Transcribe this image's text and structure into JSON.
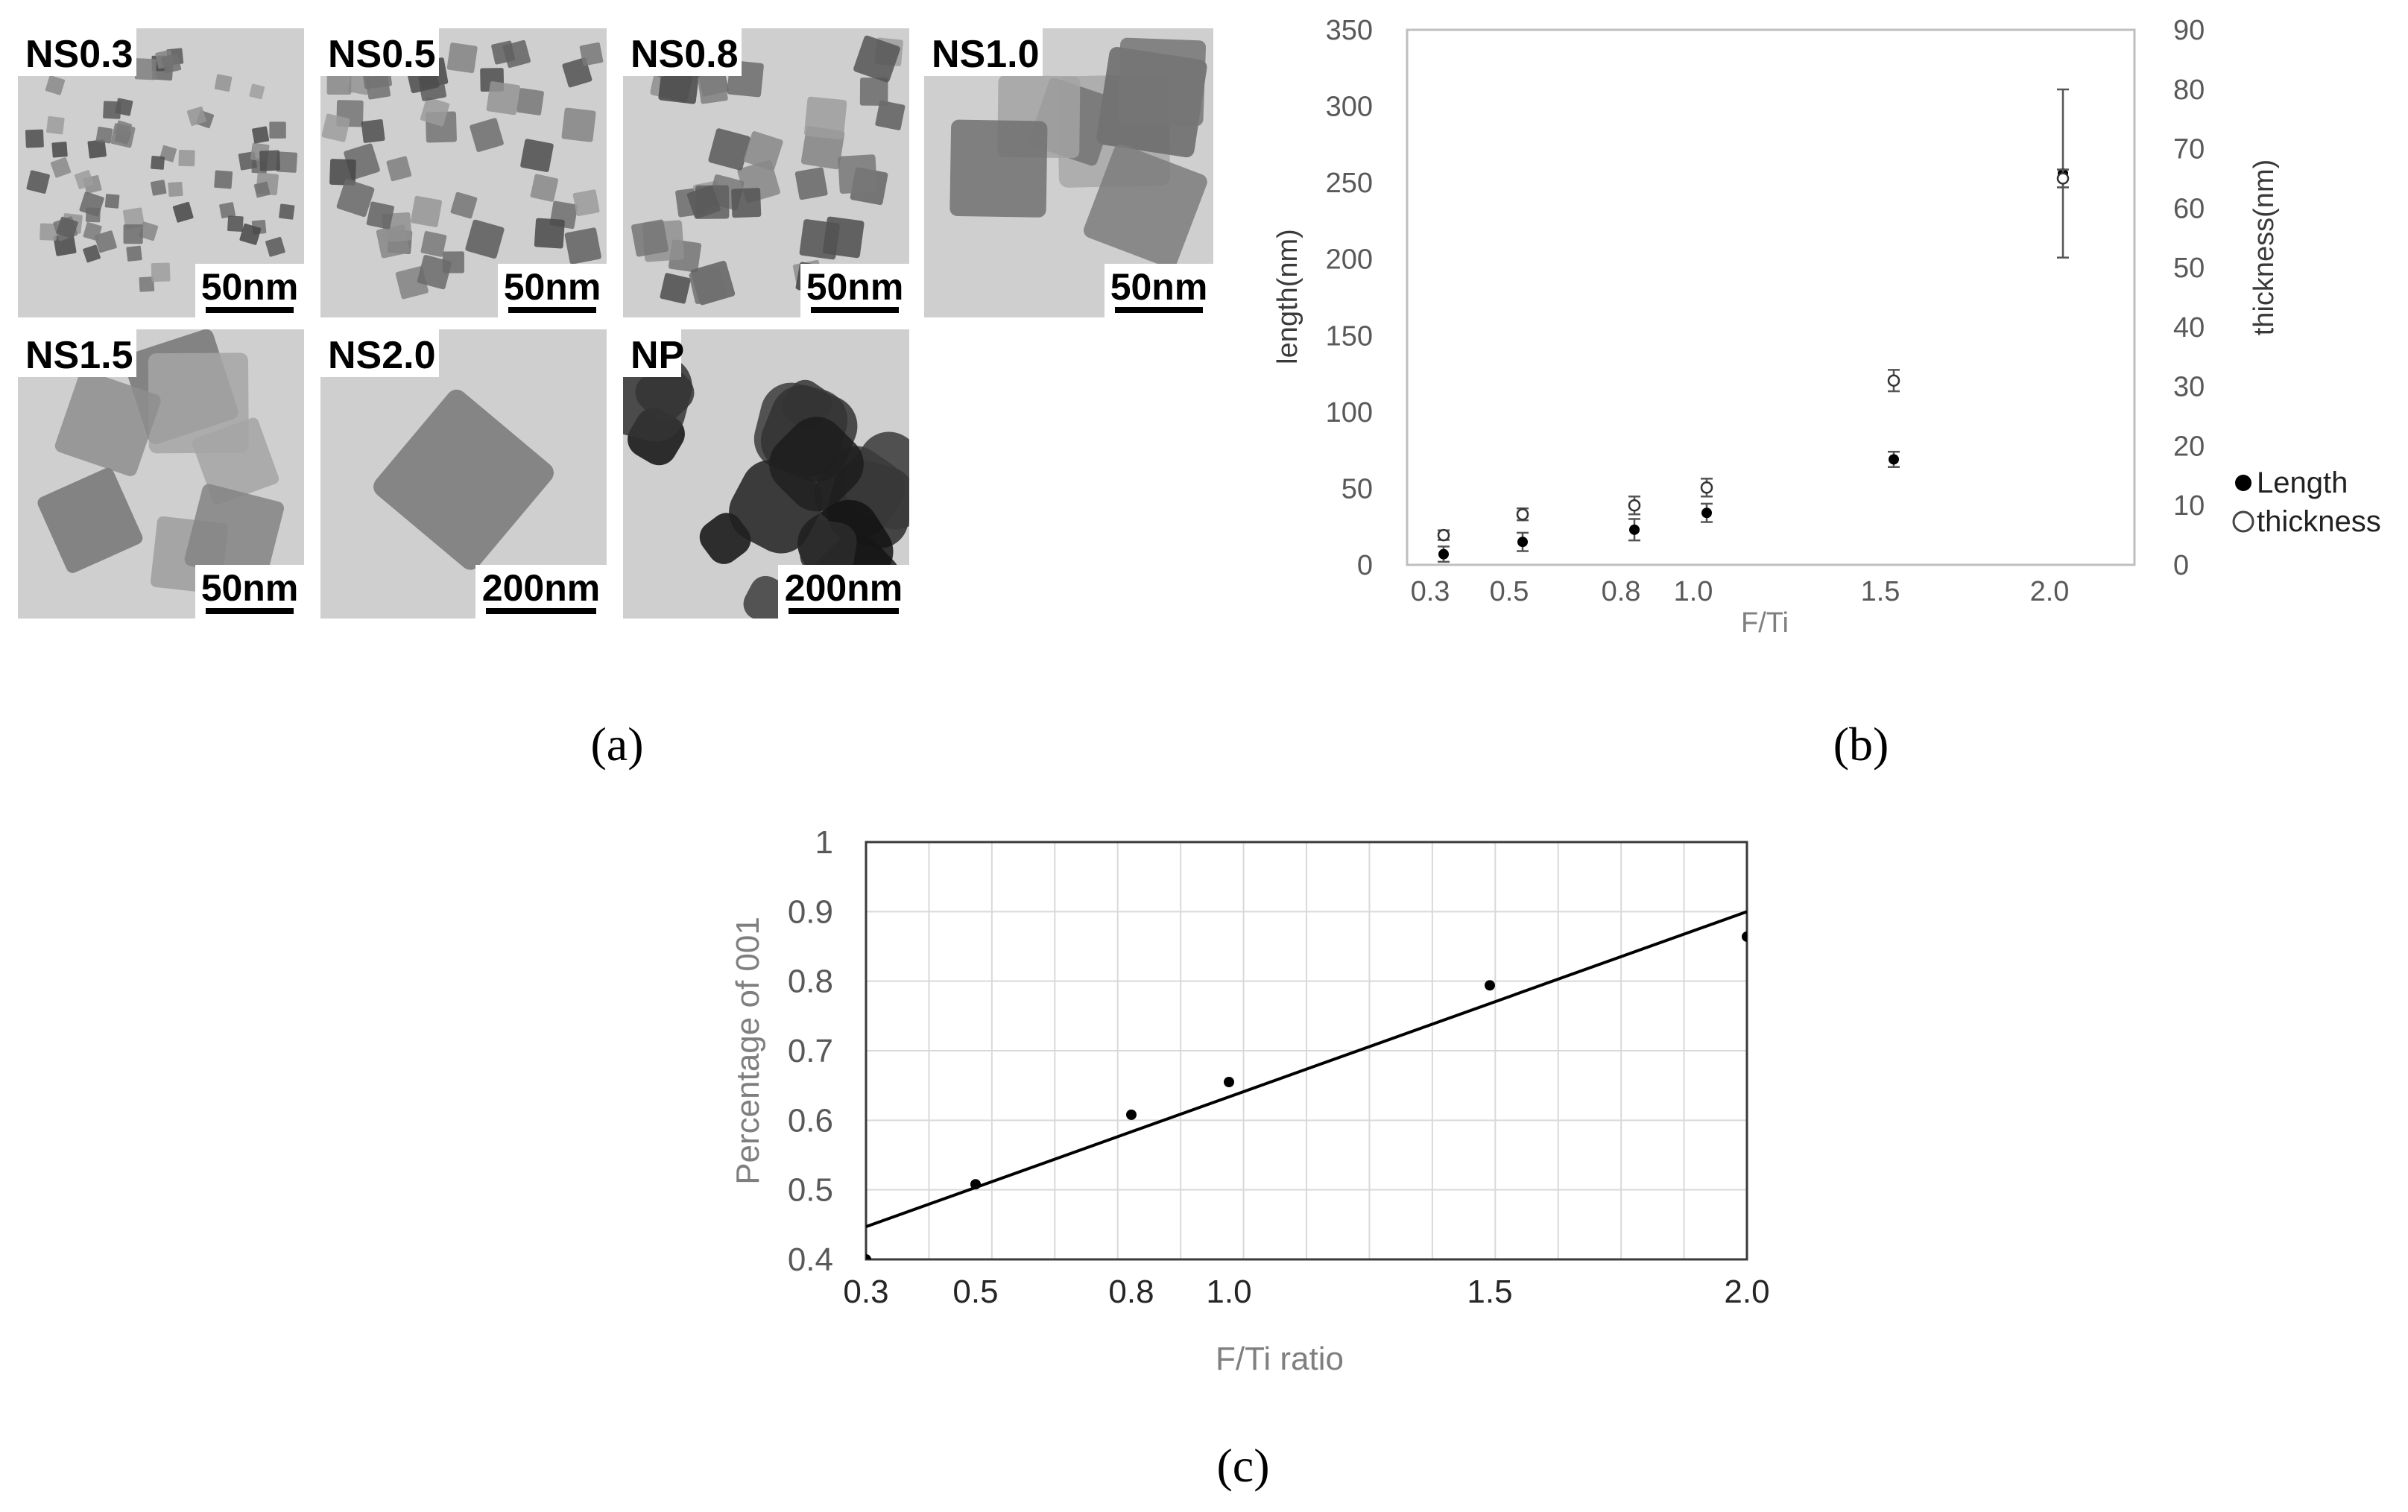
{
  "panel_labels": {
    "a": "(a)",
    "b": "(b)",
    "c": "(c)"
  },
  "tem_panels": [
    {
      "label": "NS0.3",
      "scale": "50nm",
      "style": "dense-small"
    },
    {
      "label": "NS0.5",
      "scale": "50nm",
      "style": "small"
    },
    {
      "label": "NS0.8",
      "scale": "50nm",
      "style": "medium"
    },
    {
      "label": "NS1.0",
      "scale": "50nm",
      "style": "large"
    },
    {
      "label": "NS1.5",
      "scale": "50nm",
      "style": "large"
    },
    {
      "label": "NS2.0",
      "scale": "200nm",
      "style": "single"
    },
    {
      "label": "NP",
      "scale": "200nm",
      "style": "dark-particles"
    }
  ],
  "chart_data": [
    {
      "type": "scatter",
      "panel": "b",
      "title": "",
      "xlabel": "F/Ti",
      "ylabel": "length(nm)",
      "y2label": "thickness(nm)",
      "x_ticks": [
        "0.3",
        "0.5",
        "0.8",
        "1.0",
        "1.5",
        "2.0"
      ],
      "x_values": [
        0.3,
        0.5,
        0.8,
        1.0,
        1.5,
        2.0
      ],
      "ylim": [
        0,
        350
      ],
      "y_ticks": [
        "0",
        "50",
        "100",
        "150",
        "200",
        "250",
        "300",
        "350"
      ],
      "y2lim": [
        0,
        90
      ],
      "y2_ticks": [
        "0",
        "10",
        "20",
        "30",
        "40",
        "50",
        "60",
        "70",
        "80",
        "90"
      ],
      "legend_position": "right",
      "series": [
        {
          "name": "Length",
          "marker": "filled-circle",
          "axis": "left",
          "x": [
            0.3,
            0.5,
            0.8,
            1.0,
            1.5,
            2.0
          ],
          "values": [
            7,
            15,
            23,
            34,
            69,
            256
          ],
          "err": [
            5,
            6,
            7,
            6,
            5,
            55
          ]
        },
        {
          "name": "thickness",
          "marker": "open-circle",
          "axis": "right",
          "x": [
            0.3,
            0.5,
            0.8,
            1.0,
            1.5,
            2.0
          ],
          "values": [
            5,
            8.5,
            10,
            13,
            31,
            65
          ],
          "err": [
            0.8,
            1,
            1.5,
            1.5,
            1.8,
            1.5
          ]
        }
      ]
    },
    {
      "type": "scatter",
      "panel": "c",
      "title": "",
      "xlabel": "F/Ti ratio",
      "ylabel": "Percentage of 001",
      "x_ticks": [
        "0.3",
        "0.5",
        "0.8",
        "1.0",
        "1.5",
        "2.0"
      ],
      "x_values": [
        0.3,
        0.5,
        0.8,
        1.0,
        1.5,
        2.0
      ],
      "ylim": [
        0.4,
        1
      ],
      "y_ticks": [
        "1",
        "0.9",
        "0.8",
        "0.7",
        "0.6",
        "0.5",
        "0.4"
      ],
      "grid": true,
      "series": [
        {
          "marker": "filled-circle",
          "x": [
            0.3,
            0.5,
            0.8,
            1.0,
            1.5,
            2.0
          ],
          "values": [
            0.4,
            0.508,
            0.608,
            0.655,
            0.794,
            0.864
          ]
        }
      ],
      "trendline": {
        "x": [
          0.3,
          2.0
        ],
        "values": [
          0.447,
          0.9
        ]
      }
    }
  ]
}
